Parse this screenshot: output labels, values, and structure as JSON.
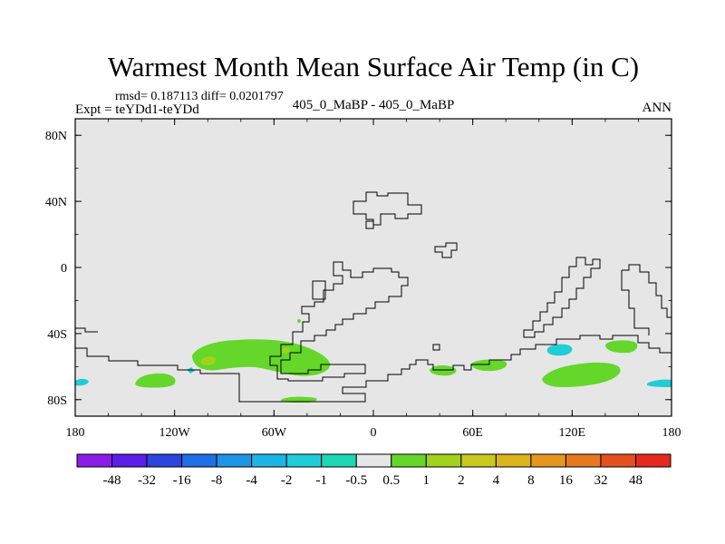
{
  "chart_data": {
    "type": "heatmap",
    "title": "Warmest Month Mean Surface Air Temp (in C)",
    "stats": "rmsd= 0.187113 diff= 0.0201797",
    "left_label": "Expt = teYDd1-teYDd",
    "center_label": "405_0_MaBP - 405_0_MaBP",
    "right_label": "ANN",
    "x_ticks": [
      {
        "value": -180,
        "label": "180"
      },
      {
        "value": -120,
        "label": "120W"
      },
      {
        "value": -60,
        "label": "60W"
      },
      {
        "value": 0,
        "label": "0"
      },
      {
        "value": 60,
        "label": "60E"
      },
      {
        "value": 120,
        "label": "120E"
      },
      {
        "value": 180,
        "label": "180"
      }
    ],
    "y_ticks": [
      {
        "value": 80,
        "label": "80N"
      },
      {
        "value": 40,
        "label": "40N"
      },
      {
        "value": 0,
        "label": "0"
      },
      {
        "value": -40,
        "label": "40S"
      },
      {
        "value": -80,
        "label": "80S"
      }
    ],
    "xlim": [
      -180,
      180
    ],
    "ylim": [
      -90,
      90
    ],
    "colorbar": {
      "labels": [
        "-48",
        "-32",
        "-16",
        "-8",
        "-4",
        "-2",
        "-1",
        "-0.5",
        "0.5",
        "1",
        "2",
        "4",
        "8",
        "16",
        "32",
        "48"
      ],
      "colors": [
        "#8a1ee6",
        "#5a1ee6",
        "#2a46dc",
        "#1e6ee6",
        "#1e96e6",
        "#1eb4e6",
        "#1ecdd7",
        "#1ed7b4",
        "#e6e6e6",
        "#64d72a",
        "#a0d21e",
        "#c8c81e",
        "#dcb41e",
        "#e6961e",
        "#e6781e",
        "#e6501e",
        "#e62a1e"
      ]
    },
    "anomaly_regions": [
      {
        "name": "green-patch-south-atlantic-west",
        "lon": -92,
        "lat": -54,
        "value_class": "0.5 to 1"
      },
      {
        "name": "green-patch-south-pacific-east",
        "lon": -138,
        "lat": -67,
        "value_class": "0.5 to 1"
      },
      {
        "name": "green-patch-antarctic",
        "lon": -50,
        "lat": -80,
        "value_class": "0.5 to 1"
      },
      {
        "name": "green-patch-south-indian",
        "lon": 45,
        "lat": -62,
        "value_class": "0.5 to 1"
      },
      {
        "name": "green-patch-south-indian-east",
        "lon": 72,
        "lat": -59,
        "value_class": "0.5 to 1"
      },
      {
        "name": "green-patch-tasman",
        "lon": 135,
        "lat": -66,
        "value_class": "0.5 to 1"
      },
      {
        "name": "green-patch-south-pacific-west",
        "lon": 152,
        "lat": -48,
        "value_class": "0.5 to 1"
      },
      {
        "name": "yellow-patch-south-atlantic",
        "lon": -100,
        "lat": -57,
        "value_class": "1 to 2"
      },
      {
        "name": "cyan-patch-south-indian",
        "lon": 117,
        "lat": -50,
        "value_class": "-1 to -0.5"
      },
      {
        "name": "cyan-patch-east-edge",
        "lon": 175,
        "lat": -70,
        "value_class": "-1 to -0.5"
      },
      {
        "name": "cyan-patch-west-edge",
        "lon": -177,
        "lat": -69,
        "value_class": "-1 to -0.5"
      }
    ]
  }
}
